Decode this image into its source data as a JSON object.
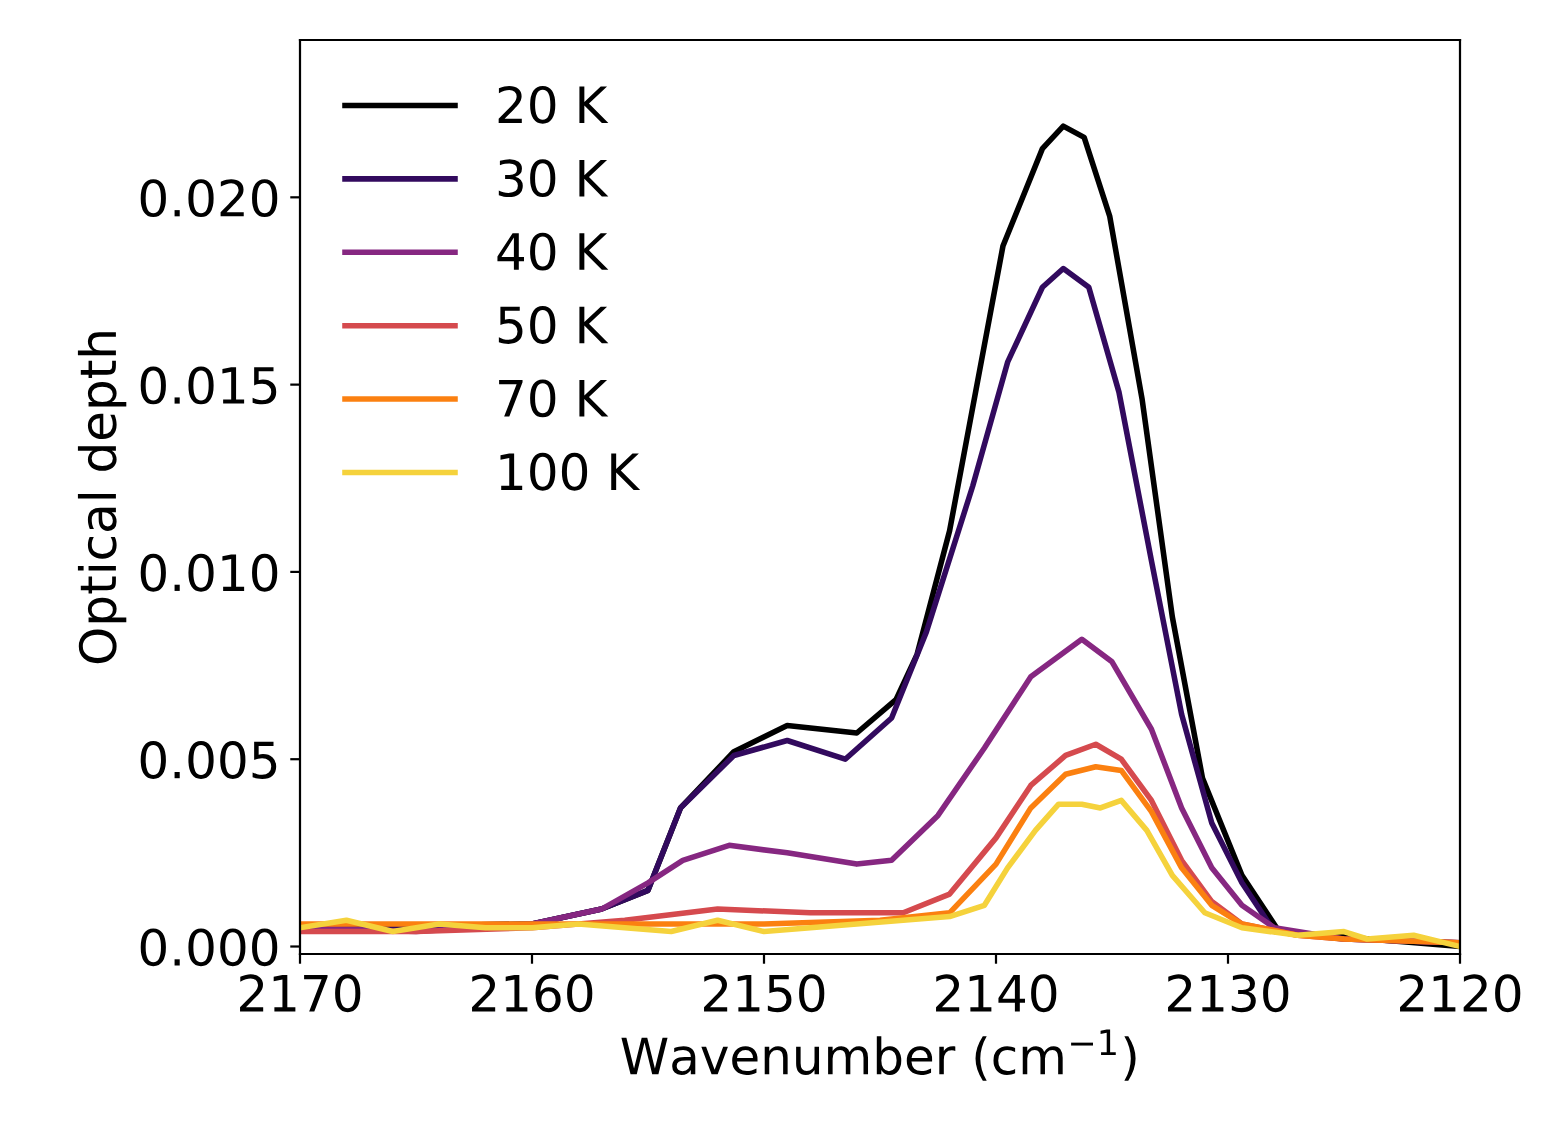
{
  "chart_data": {
    "type": "line",
    "xlabel": "Wavenumber (cm$^{−1}$)",
    "ylabel": "Optical depth",
    "xlim": [
      2170,
      2120
    ],
    "ylim": [
      -0.0002,
      0.0242
    ],
    "xticks": [
      2170,
      2160,
      2150,
      2140,
      2130,
      2120
    ],
    "yticks": [
      {
        "value": 0,
        "label": "0.000"
      },
      {
        "value": 0.005,
        "label": "0.005"
      },
      {
        "value": 0.01,
        "label": "0.010"
      },
      {
        "value": 0.015,
        "label": "0.015"
      },
      {
        "value": 0.02,
        "label": "0.020"
      }
    ],
    "legend": "top left",
    "grid": false,
    "line_style": "solid",
    "marker": "none",
    "series": [
      {
        "name": "20 K",
        "color": "#000000",
        "x": [
          2170,
          2160,
          2157,
          2155,
          2153.6,
          2151.3,
          2149,
          2146,
          2144.3,
          2143.4,
          2142,
          2139.7,
          2138,
          2137.1,
          2136.2,
          2135.1,
          2133.7,
          2132.4,
          2131.1,
          2129.4,
          2127.8,
          2120
        ],
        "values": [
          0.0005,
          0.0006,
          0.001,
          0.0015,
          0.0037,
          0.0052,
          0.0059,
          0.0057,
          0.0066,
          0.0078,
          0.0111,
          0.0187,
          0.0213,
          0.0219,
          0.0216,
          0.0195,
          0.0146,
          0.0088,
          0.0045,
          0.0019,
          0.0004,
          0.0
        ]
      },
      {
        "name": "30 K",
        "color": "#320a5e",
        "x": [
          2170,
          2160,
          2157,
          2155,
          2153.6,
          2151.3,
          2149,
          2146.5,
          2144.5,
          2143,
          2141,
          2139.5,
          2138,
          2137.1,
          2136,
          2134.7,
          2133.3,
          2132,
          2130.7,
          2129.4,
          2128,
          2125,
          2120
        ],
        "values": [
          0.0005,
          0.0006,
          0.001,
          0.0015,
          0.0037,
          0.0051,
          0.0055,
          0.005,
          0.0061,
          0.0084,
          0.0123,
          0.0156,
          0.0176,
          0.0181,
          0.0176,
          0.0148,
          0.0103,
          0.0062,
          0.0033,
          0.0017,
          0.0004,
          0.0002,
          0.0001
        ]
      },
      {
        "name": "40 K",
        "color": "#862781",
        "x": [
          2170,
          2165,
          2160,
          2157,
          2155,
          2153.5,
          2151.5,
          2149,
          2146,
          2144.5,
          2142.5,
          2140.5,
          2138.5,
          2136.3,
          2135,
          2133.3,
          2132,
          2130.7,
          2129.4,
          2128,
          2125,
          2120
        ],
        "values": [
          0.0005,
          0.0004,
          0.0006,
          0.001,
          0.0017,
          0.0023,
          0.0027,
          0.0025,
          0.0022,
          0.0023,
          0.0035,
          0.0053,
          0.0072,
          0.0082,
          0.0076,
          0.0058,
          0.0037,
          0.0021,
          0.0011,
          0.0005,
          0.0002,
          0.0001
        ]
      },
      {
        "name": "50 K",
        "color": "#d54a4e",
        "x": [
          2170,
          2165,
          2160,
          2156,
          2152,
          2148,
          2144,
          2142,
          2140,
          2138.5,
          2137,
          2135.7,
          2134.6,
          2133.3,
          2132,
          2130.7,
          2129.4,
          2127,
          2125,
          2120
        ],
        "values": [
          0.0004,
          0.0004,
          0.0005,
          0.0007,
          0.001,
          0.0009,
          0.0009,
          0.0014,
          0.0029,
          0.0043,
          0.0051,
          0.0054,
          0.005,
          0.0039,
          0.0023,
          0.0012,
          0.0006,
          0.0003,
          0.0002,
          0.0001
        ]
      },
      {
        "name": "70 K",
        "color": "#fb8010",
        "x": [
          2170,
          2160,
          2150,
          2145,
          2142,
          2140,
          2138.5,
          2137,
          2135.7,
          2134.6,
          2133.3,
          2132,
          2130.7,
          2129.4,
          2127,
          2125,
          2120
        ],
        "values": [
          0.0006,
          0.0006,
          0.0006,
          0.0007,
          0.0009,
          0.0022,
          0.0037,
          0.0046,
          0.0048,
          0.0047,
          0.0036,
          0.0021,
          0.0011,
          0.0006,
          0.0003,
          0.0002,
          0.0001
        ]
      },
      {
        "name": "100 K",
        "color": "#f5d23c",
        "x": [
          2170,
          2168,
          2166,
          2164,
          2162,
          2160,
          2158,
          2156,
          2154,
          2152,
          2150,
          2148,
          2146,
          2144,
          2142,
          2140.5,
          2139.5,
          2138.3,
          2137.3,
          2136.3,
          2135.5,
          2134.6,
          2133.5,
          2132.4,
          2131,
          2129.4,
          2127,
          2125,
          2124,
          2122,
          2120
        ],
        "values": [
          0.0005,
          0.0007,
          0.0004,
          0.0006,
          0.0005,
          0.0005,
          0.0006,
          0.0005,
          0.0004,
          0.0007,
          0.0004,
          0.0005,
          0.0006,
          0.0007,
          0.0008,
          0.0011,
          0.0021,
          0.0031,
          0.0038,
          0.0038,
          0.0037,
          0.0039,
          0.0031,
          0.0019,
          0.0009,
          0.0005,
          0.0003,
          0.0004,
          0.0002,
          0.0003,
          0.0
        ]
      }
    ]
  }
}
